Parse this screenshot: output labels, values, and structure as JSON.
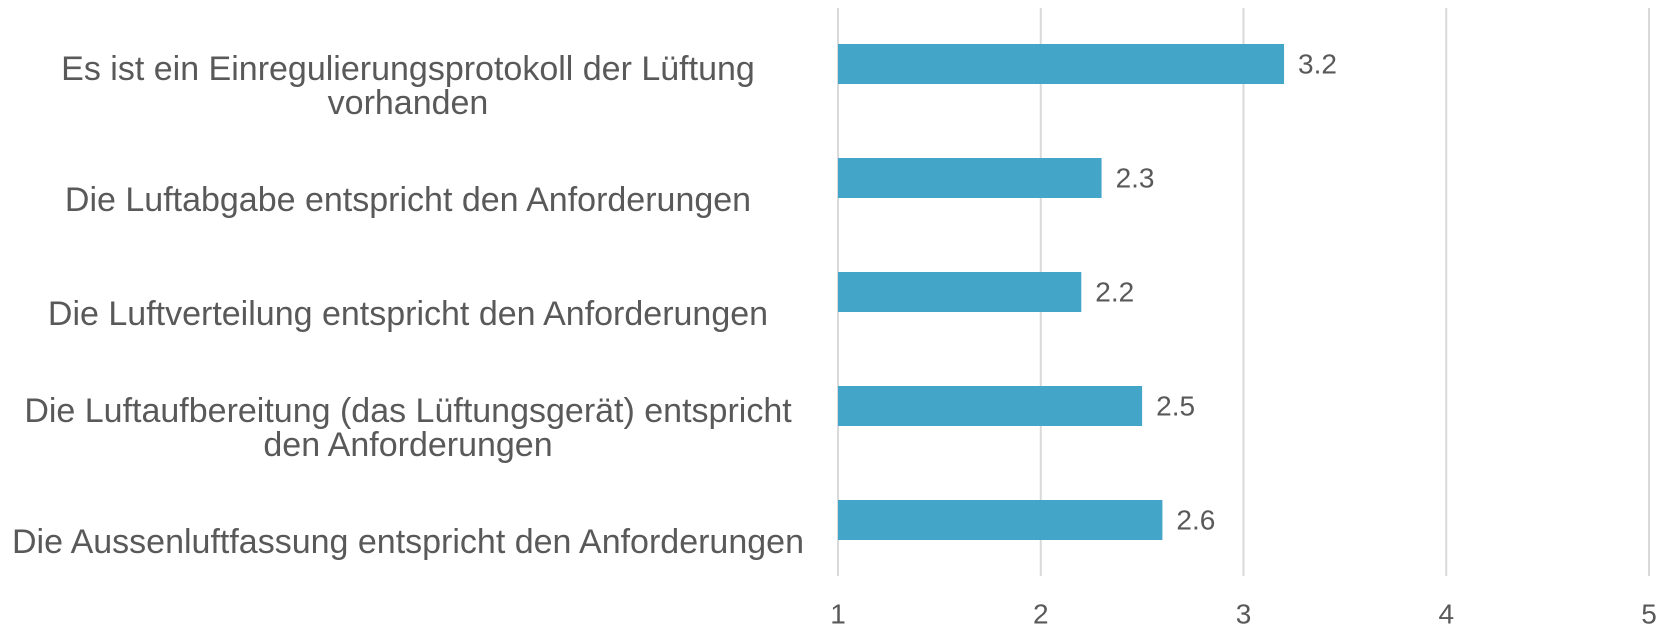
{
  "chart_data": {
    "type": "bar",
    "orientation": "horizontal",
    "categories": [
      "Es ist ein Einregulierungsprotokoll der Lüftung vorhanden",
      "Die Luftabgabe entspricht den Anforderungen",
      "Die Luftverteilung entspricht den Anforderungen",
      "Die Luftaufbereitung (das Lüftungsgerät) entspricht den Anforderungen",
      "Die Aussenluftfassung entspricht den Anforderungen"
    ],
    "values": [
      3.2,
      2.3,
      2.2,
      2.5,
      2.6
    ],
    "value_labels": [
      "3.2",
      "2.3",
      "2.2",
      "2.5",
      "2.6"
    ],
    "color": "#43a5c8",
    "xlim": [
      1,
      5
    ],
    "xticks": [
      1,
      2,
      3,
      4,
      5
    ],
    "grid": true
  }
}
